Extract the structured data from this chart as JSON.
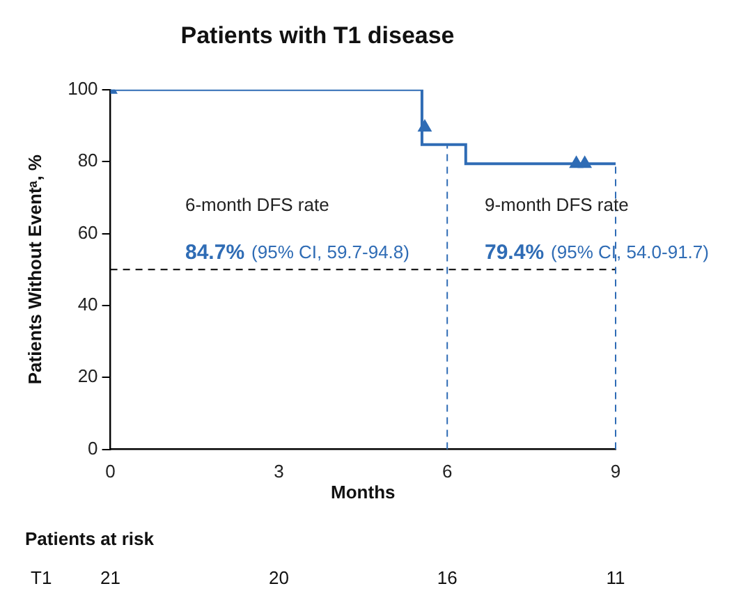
{
  "chart_data": {
    "type": "step",
    "title": "Patients with T1 disease",
    "xlabel": "Months",
    "ylabel": "Patients Without Eventᵃ, %",
    "xlim": [
      0,
      9
    ],
    "xticks": [
      0,
      3,
      6,
      9
    ],
    "ylim": [
      0,
      100
    ],
    "yticks": [
      0,
      20,
      40,
      60,
      80,
      100
    ],
    "grid": false,
    "legend": false,
    "series": [
      {
        "type": "step",
        "color": "#2f6cb5",
        "x": [
          0,
          5.55,
          6.33,
          9
        ],
        "values": [
          100,
          84.7,
          79.4,
          79.4
        ],
        "marker": "none"
      },
      {
        "type": "scatter",
        "color": "#2f6cb5",
        "x": [
          0,
          5.6,
          8.3,
          8.45
        ],
        "values": [
          100,
          89.5,
          79.4,
          79.4
        ],
        "marker": "triangle"
      }
    ],
    "ref_lines": [
      {
        "axis": "y",
        "value": 50,
        "color": "#000000",
        "line_style": "dashed"
      },
      {
        "axis": "x",
        "value": 6,
        "color": "#2f6cb5",
        "line_style": "dashed"
      },
      {
        "axis": "x",
        "value": 9,
        "color": "#2f6cb5",
        "line_style": "dashed"
      }
    ],
    "annotations": [
      "6-month DFS rate",
      "84.7%",
      "(95% CI, 59.7-94.8)",
      "9-month DFS rate",
      "79.4%",
      "(95% CI, 54.0-91.7)",
      "Patients at risk",
      "T1",
      "21",
      "20",
      "16",
      "11"
    ]
  }
}
